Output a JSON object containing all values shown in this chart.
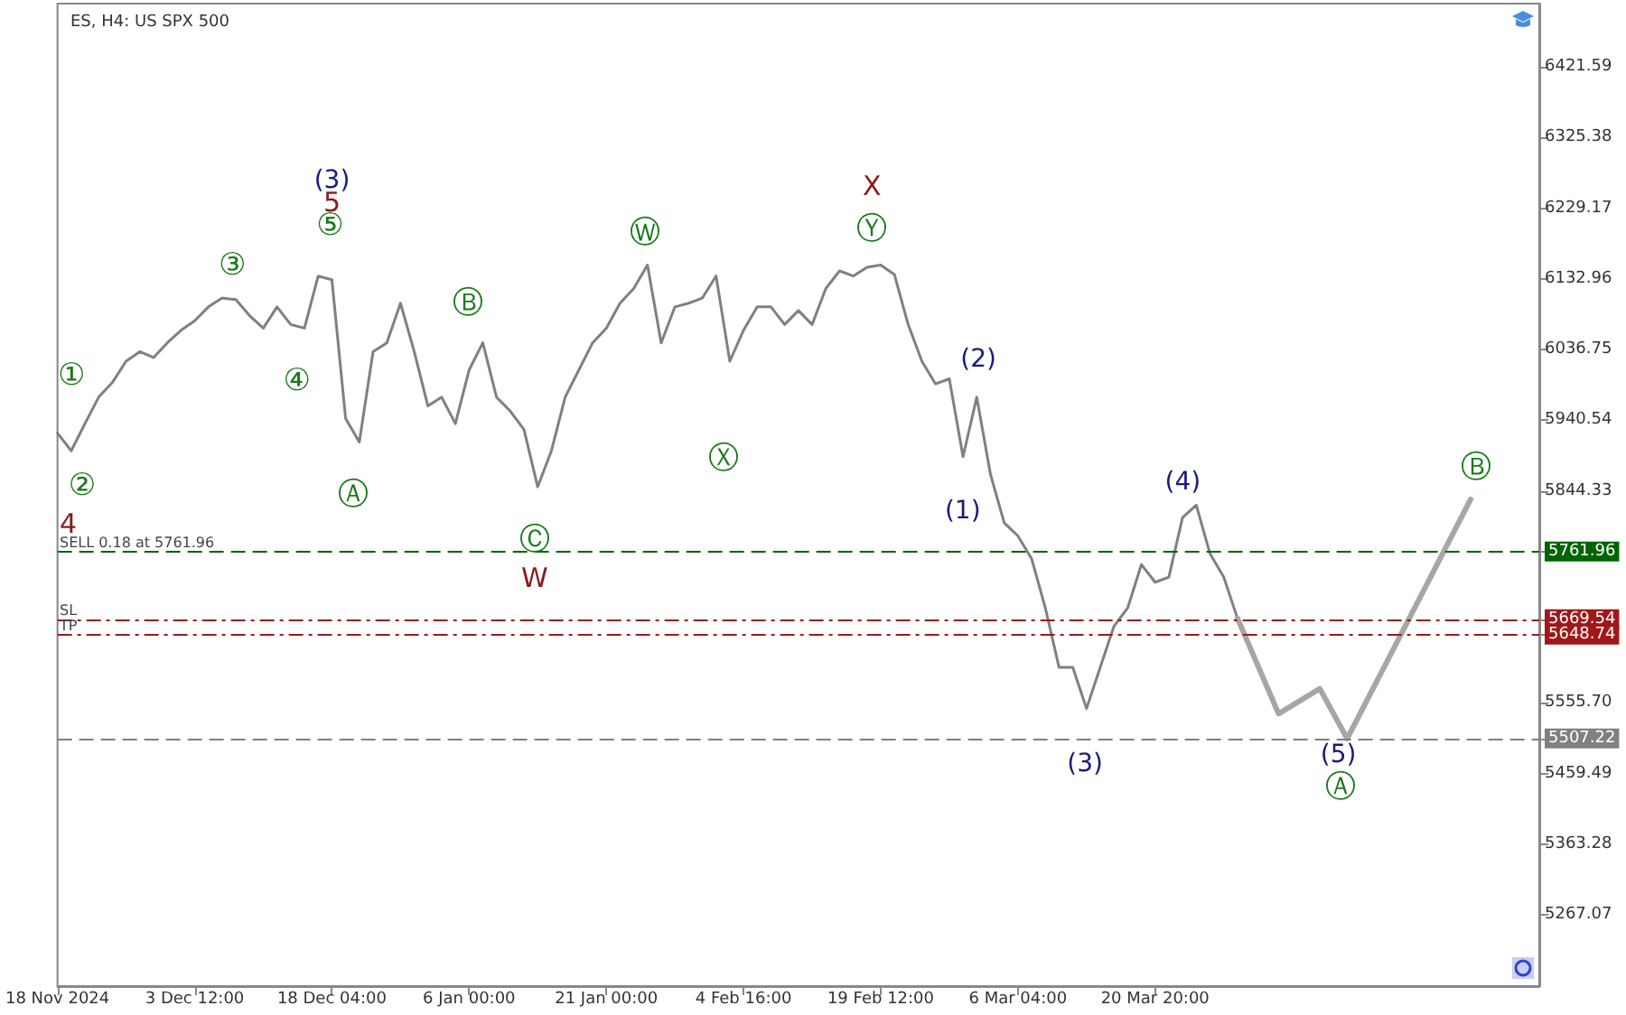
{
  "chart_data": {
    "type": "line",
    "title": "ES, H4: US SPX 500",
    "categories": [
      "18 Nov 2024",
      null,
      null,
      null,
      null,
      null,
      null,
      null,
      null,
      null,
      "3 Dec 12:00",
      null,
      null,
      null,
      null,
      null,
      null,
      null,
      null,
      null,
      "18 Dec 04:00",
      null,
      null,
      null,
      null,
      null,
      null,
      null,
      null,
      null,
      "6 Jan 00:00",
      null,
      null,
      null,
      null,
      null,
      null,
      null,
      null,
      null,
      "21 Jan 00:00",
      null,
      null,
      null,
      null,
      null,
      null,
      null,
      null,
      null,
      "4 Feb 16:00",
      null,
      null,
      null,
      null,
      null,
      null,
      null,
      null,
      null,
      "19 Feb 12:00",
      null,
      null,
      null,
      null,
      null,
      null,
      null,
      null,
      null,
      "6 Mar 04:00",
      null,
      null,
      null,
      null,
      null,
      null,
      null,
      null,
      null,
      "20 Mar 20:00",
      null,
      null,
      null,
      null,
      null,
      null,
      null,
      null,
      null,
      null,
      null,
      null,
      null,
      null,
      null,
      null,
      null,
      null,
      null,
      null,
      null,
      null,
      null,
      null,
      null,
      null,
      null,
      null
    ],
    "series": [
      {
        "color": "#808080",
        "values": [
          5923,
          5899,
          5936,
          5972,
          5992,
          6021,
          6034,
          6026,
          6046,
          6063,
          6076,
          6095,
          6107,
          6105,
          6083,
          6066,
          6095,
          6071,
          6066,
          6137,
          6132,
          5943,
          5911,
          6034,
          6046,
          6100,
          6034,
          5960,
          5972,
          5936,
          6009,
          6046,
          5972,
          5953,
          5928,
          5850,
          5899,
          5972,
          6009,
          6046,
          6066,
          6100,
          6120,
          6152,
          6046,
          6095,
          6100,
          6107,
          6137,
          6021,
          6063,
          6095,
          6095,
          6071,
          6090,
          6071,
          6120,
          6144,
          6137,
          6149,
          6152,
          6139,
          6071,
          6021,
          5990,
          5997,
          5891,
          5972,
          5867,
          5801,
          5783,
          5752,
          5685,
          5604,
          5604,
          5548,
          5604,
          5660,
          5685,
          5744,
          5720,
          5727,
          5808,
          5825,
          5759,
          5727,
          5671,
          null,
          null,
          null,
          null,
          null,
          null,
          null,
          null,
          null,
          null,
          null,
          null,
          null,
          null,
          null,
          null,
          null,
          null,
          null,
          null,
          null,
          null
        ]
      },
      {
        "color": "#a6a6a6",
        "values": [
          null,
          null,
          null,
          null,
          null,
          null,
          null,
          null,
          null,
          null,
          null,
          null,
          null,
          null,
          null,
          null,
          null,
          null,
          null,
          null,
          null,
          null,
          null,
          null,
          null,
          null,
          null,
          null,
          null,
          null,
          null,
          null,
          null,
          null,
          null,
          null,
          null,
          null,
          null,
          null,
          null,
          null,
          null,
          null,
          null,
          null,
          null,
          null,
          null,
          null,
          null,
          null,
          null,
          null,
          null,
          null,
          null,
          null,
          null,
          null,
          null,
          null,
          null,
          null,
          null,
          null,
          null,
          null,
          null,
          null,
          null,
          null,
          null,
          null,
          null,
          null,
          null,
          null,
          null,
          null,
          null,
          null,
          null,
          null,
          null,
          null,
          5671,
          null,
          null,
          5541,
          null,
          null,
          5575,
          null,
          5507,
          null,
          null,
          null,
          null,
          null,
          null,
          null,
          null,
          5833,
          null,
          null,
          null,
          null,
          null
        ]
      }
    ],
    "ylim": [
      5170,
      6508
    ],
    "yticks": [
      6421.59,
      6325.38,
      6229.17,
      6132.96,
      6036.75,
      5940.54,
      5844.33,
      {
        "value": 5761.96,
        "label": "5761.96"
      },
      {
        "value": 5669.54,
        "label": "5669.54"
      },
      {
        "value": 5648.74,
        "label": "5648.74"
      },
      {
        "value": 5555.7,
        "label": "5555.70"
      },
      {
        "value": 5507.22,
        "label": "5507.22"
      },
      5459.49,
      5363.28,
      5267.07
    ],
    "grid": false,
    "marker": "none",
    "ref_lines": [
      {
        "axis": "y",
        "value": 5761.96,
        "label": "SELL 0.18 at 5761.96",
        "color": "#006400",
        "line_style": "dashed"
      },
      {
        "axis": "y",
        "value": 5669.54,
        "label": "SL",
        "color": "#a01818",
        "line_style": "dashdot"
      },
      {
        "axis": "y",
        "value": 5648.74,
        "label": "TP",
        "color": "#a01818",
        "line_style": "dashdot"
      },
      {
        "axis": "y",
        "value": 5507.22,
        "color": "#808080",
        "line_style": "dashed"
      }
    ],
    "annotations": [
      "①",
      "②",
      "4",
      "③",
      "④",
      "⑤",
      "5",
      "(3)",
      "Ⓐ",
      "Ⓑ",
      "Ⓒ",
      "W",
      "Ⓦ",
      "Ⓧ",
      "X",
      "Ⓨ",
      "(2)",
      "(1)",
      "(3)",
      "(4)",
      "(5)",
      "Ⓐ",
      "Ⓑ"
    ]
  }
}
